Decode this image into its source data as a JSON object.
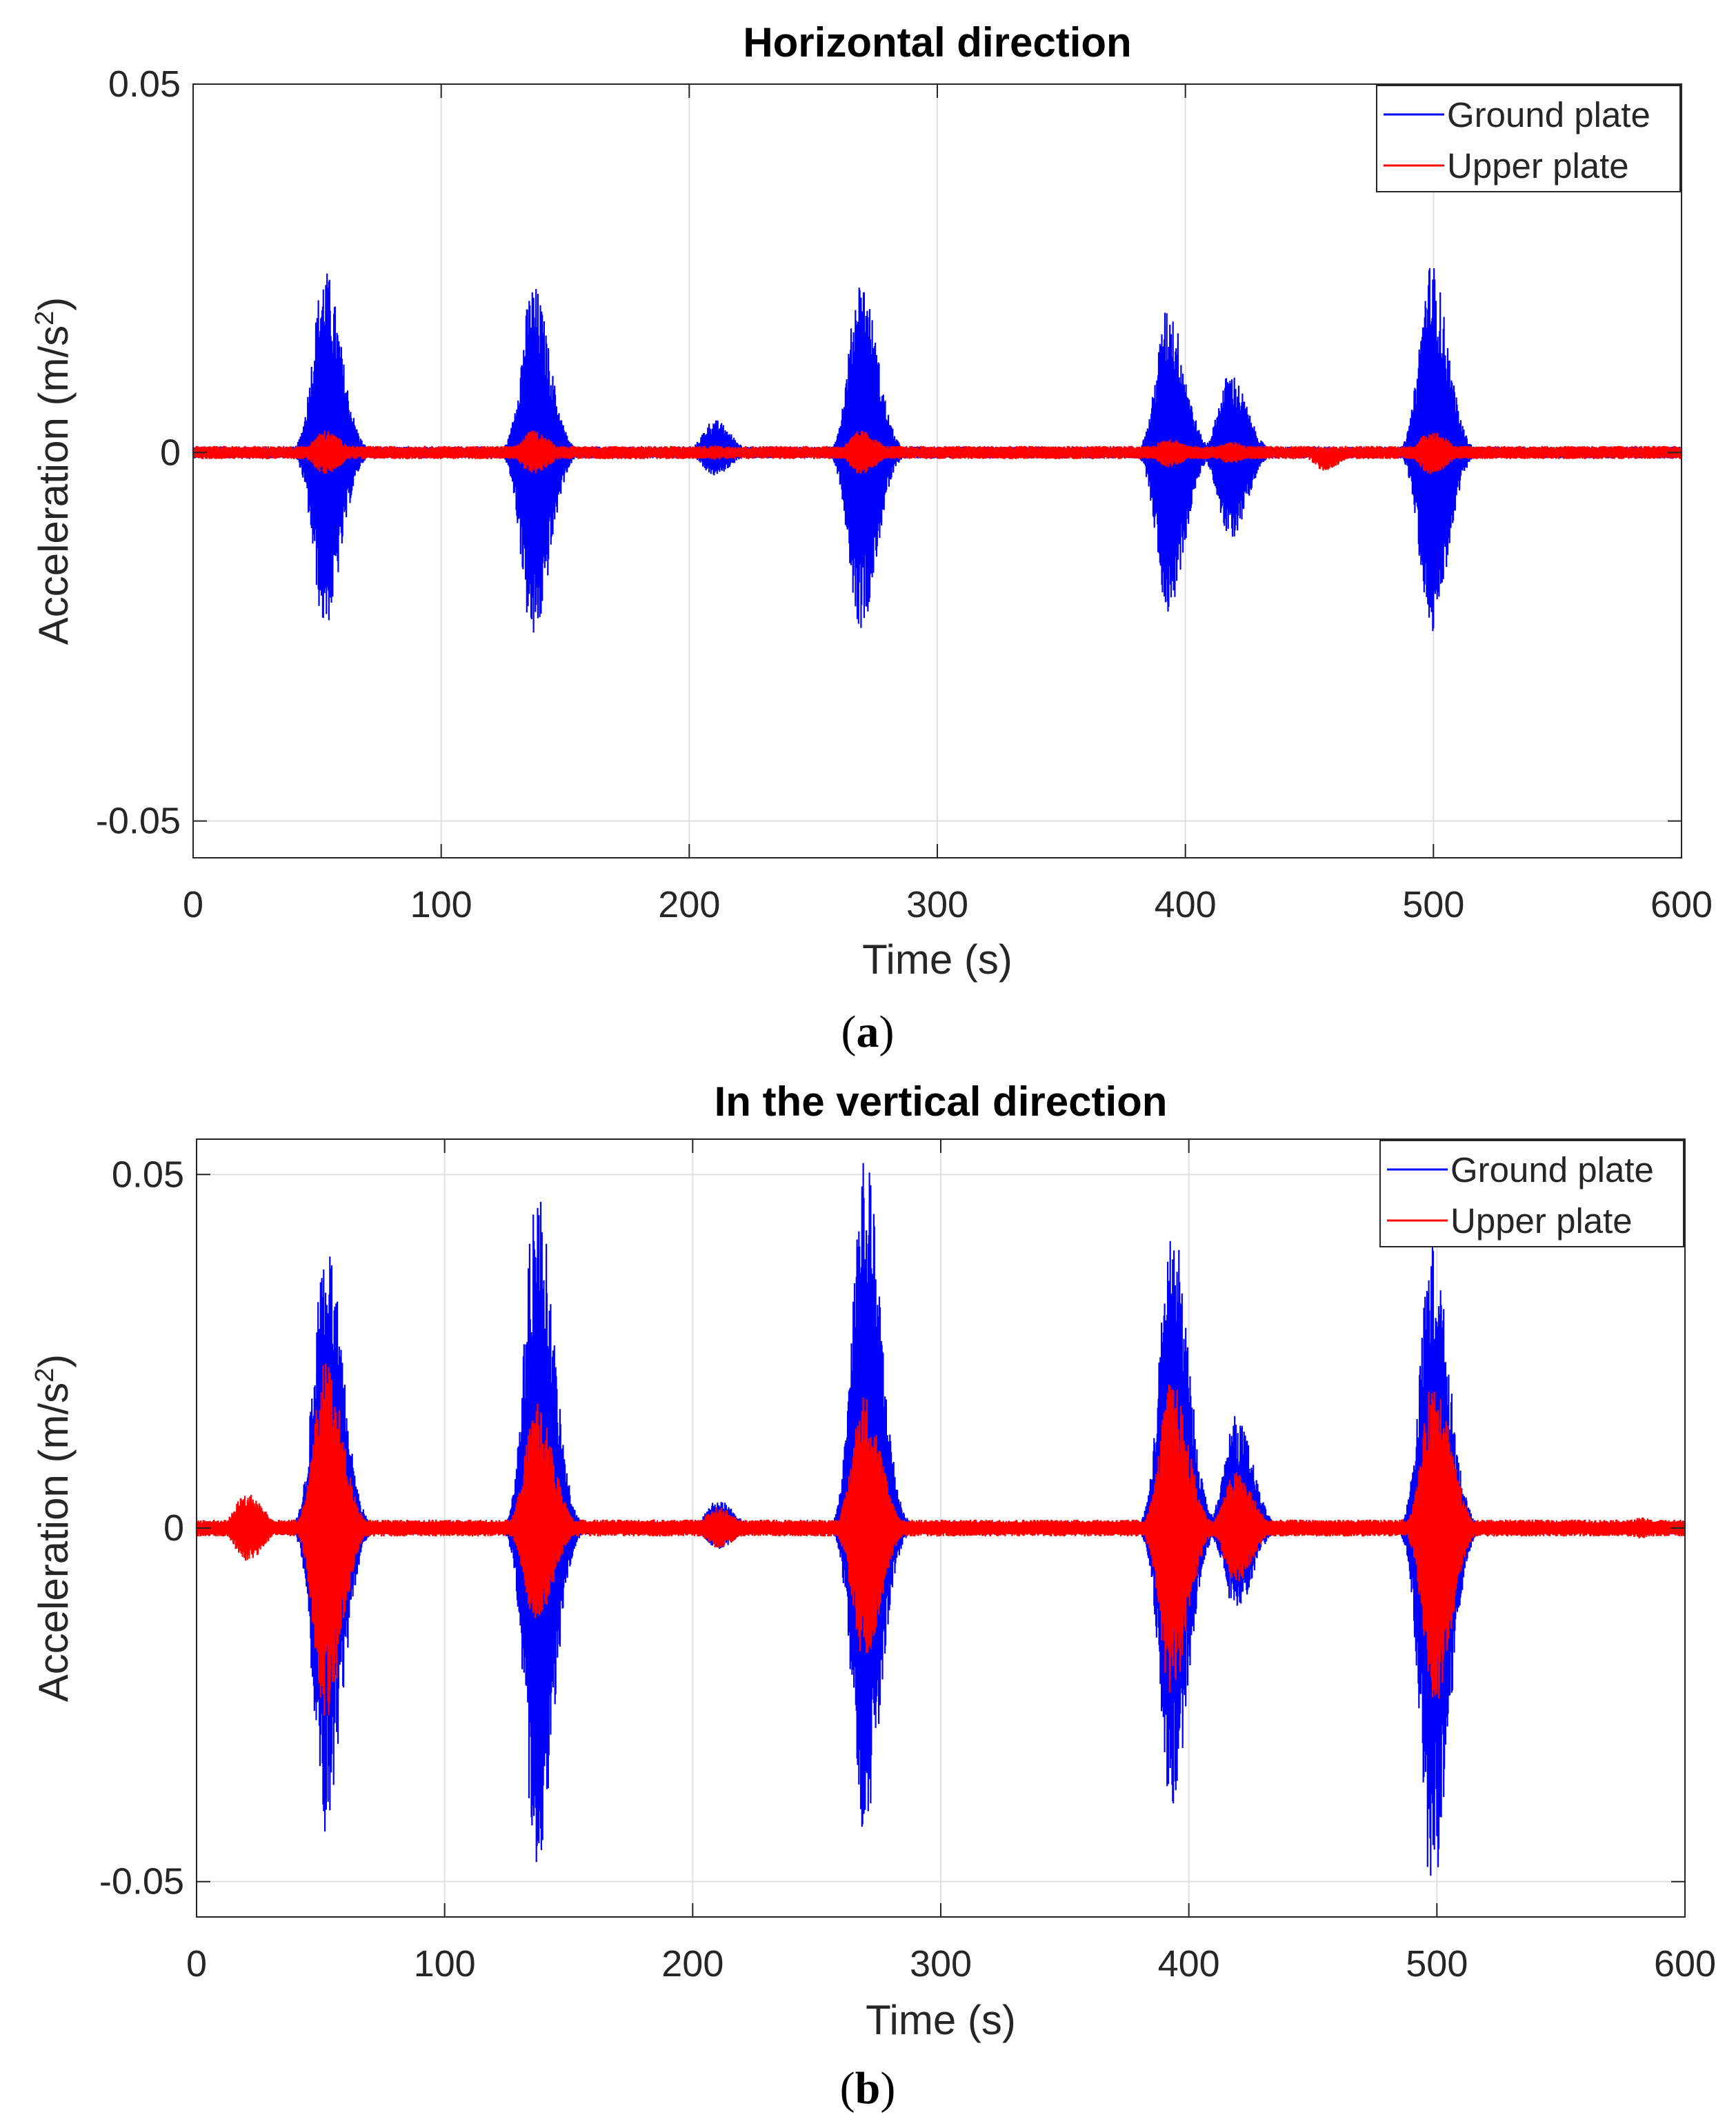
{
  "chart_data": [
    {
      "type": "line",
      "panel_label": "a",
      "title": "Horizontal direction",
      "xlabel": "Time (s)",
      "ylabel": "Acceleration (m/s",
      "ylabel_superscript": "2",
      "ylabel_suffix": ")",
      "xlim": [
        0,
        600
      ],
      "ylim": [
        -0.055,
        0.05
      ],
      "xticks": [
        0,
        100,
        200,
        300,
        400,
        500,
        600
      ],
      "xtick_labels": [
        "0",
        "100",
        "200",
        "300",
        "400",
        "500",
        "600"
      ],
      "yticks": [
        -0.05,
        0,
        0.05
      ],
      "ytick_labels": [
        "-0.05",
        "0",
        "0.05"
      ],
      "grid": true,
      "legend_position": "top-right",
      "series": [
        {
          "name": "Ground plate",
          "color": "#0000ff",
          "baseline_noise": 0.0008,
          "events": [
            {
              "t": 53,
              "pos": 0.025,
              "neg": 0.024
            },
            {
              "t": 137,
              "pos": 0.023,
              "neg": 0.026
            },
            {
              "t": 210,
              "pos": 0.0045,
              "neg": 0.0032
            },
            {
              "t": 269,
              "pos": 0.024,
              "neg": 0.024
            },
            {
              "t": 393,
              "pos": 0.02,
              "neg": 0.022
            },
            {
              "t": 418,
              "pos": 0.011,
              "neg": 0.012
            },
            {
              "t": 499,
              "pos": 0.026,
              "neg": 0.025
            }
          ]
        },
        {
          "name": "Upper plate",
          "color": "#ff0000",
          "baseline_noise": 0.0009,
          "events": [
            {
              "t": 53,
              "pos": 0.003,
              "neg": 0.003
            },
            {
              "t": 137,
              "pos": 0.003,
              "neg": 0.003
            },
            {
              "t": 210,
              "pos": 0.001,
              "neg": 0.001
            },
            {
              "t": 269,
              "pos": 0.003,
              "neg": 0.003
            },
            {
              "t": 393,
              "pos": 0.002,
              "neg": 0.002
            },
            {
              "t": 418,
              "pos": 0.0015,
              "neg": 0.0015
            },
            {
              "t": 456,
              "pos": 0.0005,
              "neg": 0.0025
            },
            {
              "t": 499,
              "pos": 0.003,
              "neg": 0.003
            }
          ]
        }
      ]
    },
    {
      "type": "line",
      "panel_label": "b",
      "title": "In the vertical direction",
      "xlabel": "Time (s)",
      "ylabel": "Acceleration (m/s",
      "ylabel_superscript": "2",
      "ylabel_suffix": ")",
      "xlim": [
        0,
        600
      ],
      "ylim": [
        -0.055,
        0.055
      ],
      "xticks": [
        0,
        100,
        200,
        300,
        400,
        500,
        600
      ],
      "xtick_labels": [
        "0",
        "100",
        "200",
        "300",
        "400",
        "500",
        "600"
      ],
      "yticks": [
        -0.05,
        0,
        0.05
      ],
      "ytick_labels": [
        "-0.05",
        "0",
        "0.05"
      ],
      "grid": true,
      "legend_position": "top-right",
      "series": [
        {
          "name": "Ground plate",
          "color": "#0000ff",
          "baseline_noise": 0.0009,
          "events": [
            {
              "t": 52,
              "pos": 0.042,
              "neg": 0.045
            },
            {
              "t": 137,
              "pos": 0.049,
              "neg": 0.049
            },
            {
              "t": 210,
              "pos": 0.004,
              "neg": 0.003
            },
            {
              "t": 269,
              "pos": 0.054,
              "neg": 0.043
            },
            {
              "t": 393,
              "pos": 0.044,
              "neg": 0.04
            },
            {
              "t": 419,
              "pos": 0.016,
              "neg": 0.012
            },
            {
              "t": 498,
              "pos": 0.041,
              "neg": 0.052
            }
          ]
        },
        {
          "name": "Upper plate",
          "color": "#ff0000",
          "baseline_noise": 0.0012,
          "events": [
            {
              "t": 20,
              "pos": 0.005,
              "neg": 0.005
            },
            {
              "t": 52,
              "pos": 0.024,
              "neg": 0.027
            },
            {
              "t": 137,
              "pos": 0.018,
              "neg": 0.014
            },
            {
              "t": 210,
              "pos": 0.003,
              "neg": 0.003
            },
            {
              "t": 269,
              "pos": 0.019,
              "neg": 0.019
            },
            {
              "t": 393,
              "pos": 0.021,
              "neg": 0.024
            },
            {
              "t": 419,
              "pos": 0.008,
              "neg": 0.008
            },
            {
              "t": 499,
              "pos": 0.022,
              "neg": 0.025
            },
            {
              "t": 582,
              "pos": 0.0015,
              "neg": 0.0015
            }
          ]
        }
      ]
    }
  ]
}
